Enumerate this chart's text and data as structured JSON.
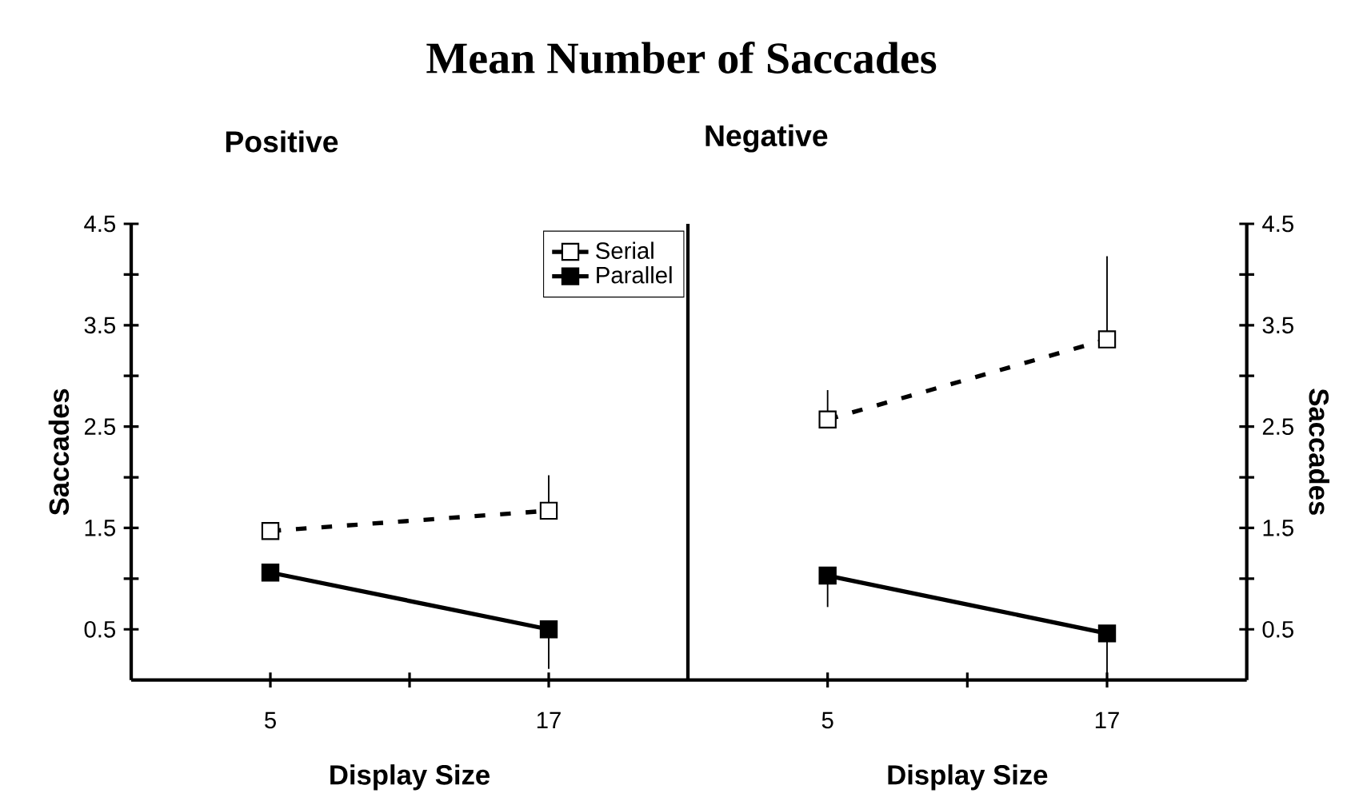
{
  "chart_data": [
    {
      "type": "line",
      "title": "Positive",
      "xlabel": "Display Size",
      "ylabel": "Saccades",
      "annotations": [
        "Mean Number of Saccades"
      ],
      "categories": [
        "5",
        "17"
      ],
      "ylim": [
        0,
        4.5
      ],
      "yticks": [
        0.5,
        {
          "value": 1,
          "label": null
        },
        1.5,
        {
          "value": 2,
          "label": null
        },
        2.5,
        {
          "value": 3,
          "label": null
        },
        3.5,
        {
          "value": 4,
          "label": null
        },
        4.5
      ],
      "legend": "top right",
      "marker": "square",
      "series": [
        {
          "name": "Serial",
          "color": "#000000",
          "line_style": "dashed",
          "values": [
            1.47,
            1.67
          ],
          "errors": [
            null,
            [
              1.67,
              2.02
            ]
          ]
        },
        {
          "name": "Parallel",
          "color": "#000000",
          "line_style": "solid",
          "values": [
            1.06,
            0.5
          ],
          "errors": [
            null,
            [
              0.11,
              0.5
            ]
          ]
        }
      ]
    },
    {
      "type": "line",
      "title": "Negative",
      "xlabel": "Display Size",
      "ylabel": "Saccades",
      "categories": [
        "5",
        "17"
      ],
      "ylim": [
        0,
        4.5
      ],
      "yticks": [
        0.5,
        {
          "value": 1,
          "label": null
        },
        1.5,
        {
          "value": 2,
          "label": null
        },
        2.5,
        {
          "value": 3,
          "label": null
        },
        3.5,
        {
          "value": 4,
          "label": null
        },
        4.5
      ],
      "marker": "square",
      "series": [
        {
          "color": "#000000",
          "line_style": "dashed",
          "values": [
            2.57,
            3.36
          ],
          "errors": [
            [
              2.57,
              2.86
            ],
            [
              3.36,
              4.18
            ]
          ]
        },
        {
          "color": "#000000",
          "line_style": "solid",
          "values": [
            1.03,
            0.46
          ],
          "errors": [
            [
              0.72,
              1.03
            ],
            [
              0.02,
              0.46
            ]
          ]
        }
      ]
    }
  ]
}
